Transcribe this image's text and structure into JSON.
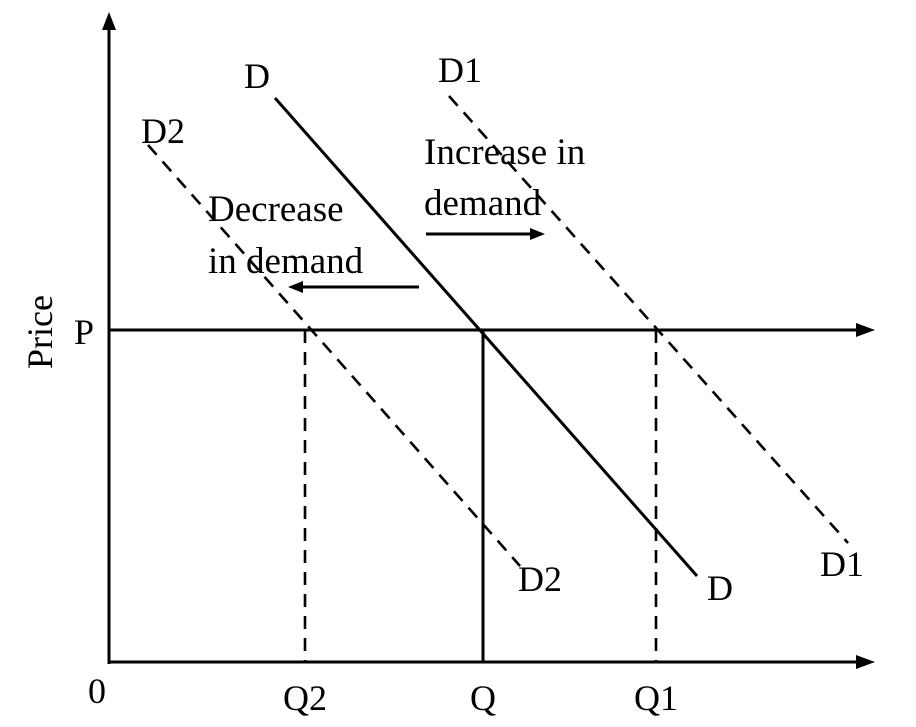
{
  "axes": {
    "y_label": "Price",
    "origin_label": "0",
    "price_tick": "P",
    "quantity_ticks": [
      "Q2",
      "Q",
      "Q1"
    ]
  },
  "curves": {
    "original": {
      "top_label": "D",
      "bottom_label": "D",
      "style": "solid"
    },
    "increased": {
      "top_label": "D1",
      "bottom_label": "D1",
      "style": "dashed"
    },
    "decreased": {
      "top_label": "D2",
      "bottom_label": "D2",
      "style": "dashed"
    }
  },
  "annotations": {
    "increase": {
      "line1": "Increase in",
      "line2": "demand",
      "arrow_direction": "right"
    },
    "decrease": {
      "line1": "Decrease",
      "line2": "in demand",
      "arrow_direction": "left"
    }
  },
  "colors": {
    "ink": "#000000",
    "background": "#ffffff"
  }
}
